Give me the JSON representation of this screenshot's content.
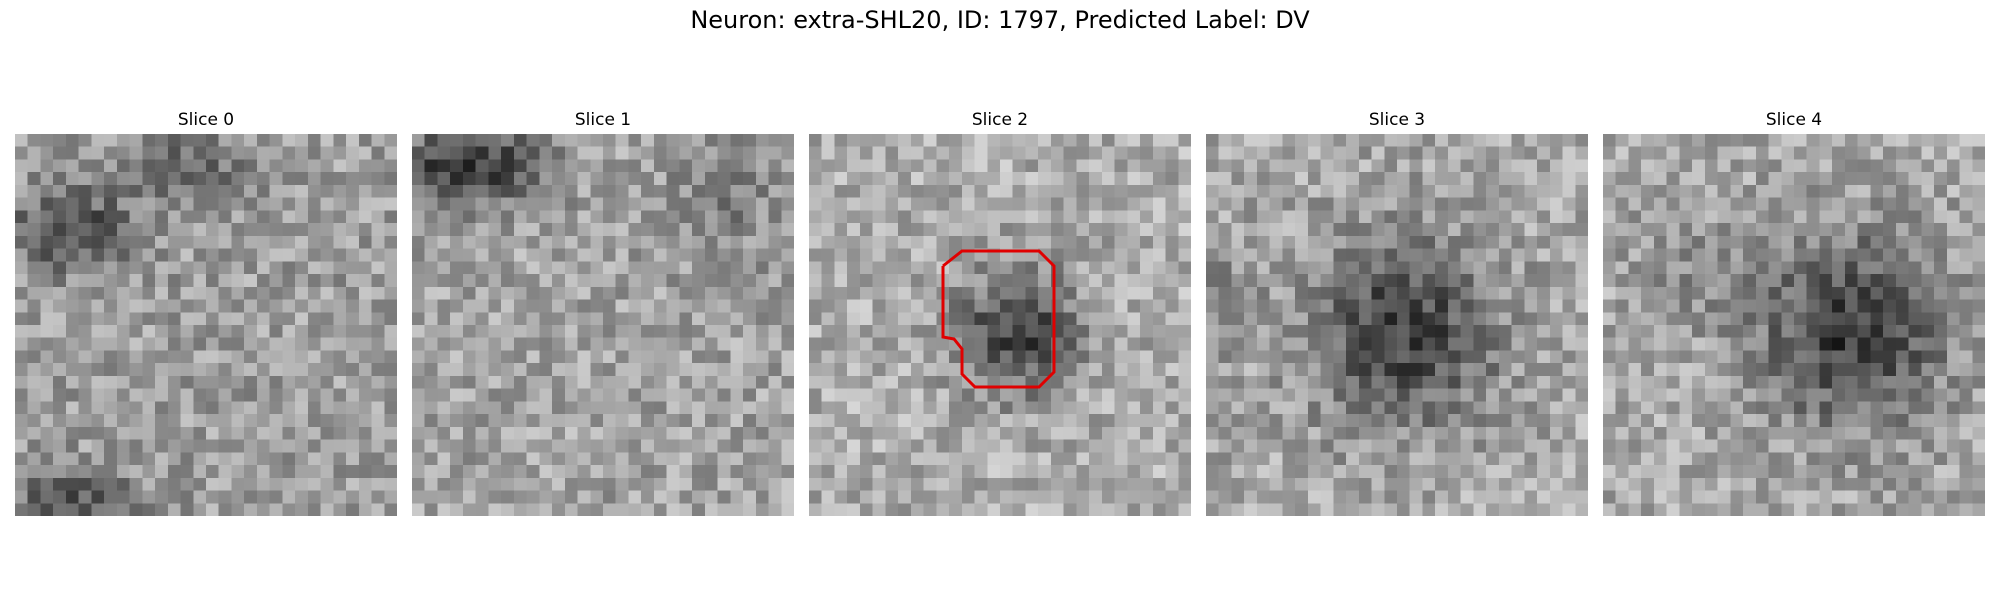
{
  "figure": {
    "title": "Neuron: extra-SHL20, ID: 1797, Predicted Label: DV"
  },
  "panels": [
    {
      "title": "Slice 0",
      "pattern": "dark-top-left-corner"
    },
    {
      "title": "Slice 1",
      "pattern": "dark-top-left-band"
    },
    {
      "title": "Slice 2",
      "pattern": "small-dark-blob-center",
      "has_contour": true
    },
    {
      "title": "Slice 3",
      "pattern": "large-dark-blob-center"
    },
    {
      "title": "Slice 4",
      "pattern": "large-dark-blob-right"
    }
  ],
  "contour_color": "#e00000",
  "colormap": "grayscale"
}
